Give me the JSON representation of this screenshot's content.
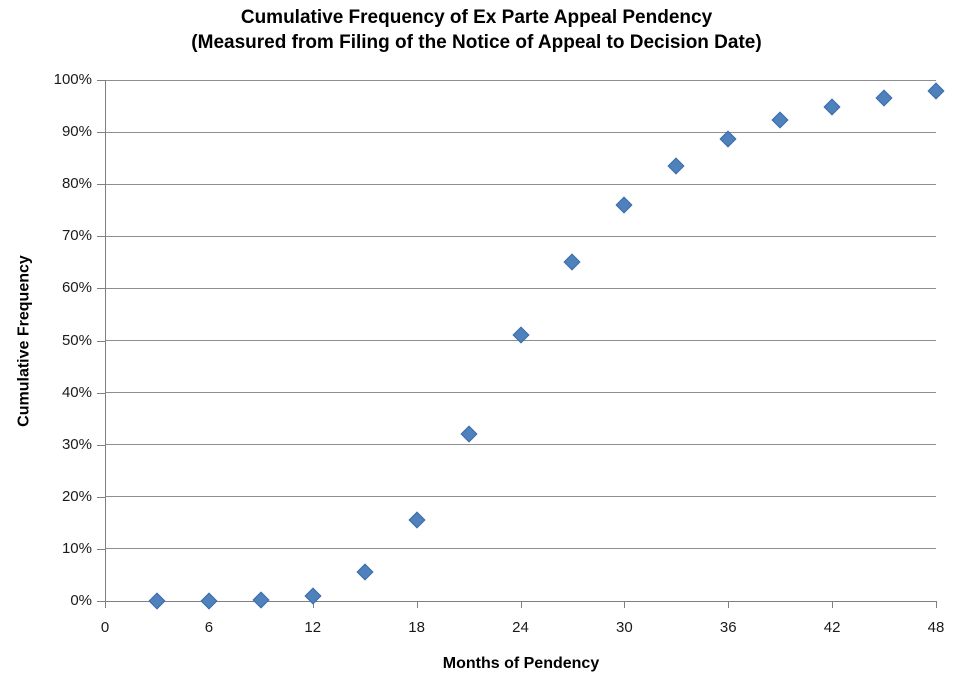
{
  "title": {
    "line1": "Cumulative Frequency of Ex Parte Appeal Pendency",
    "line2": "(Measured from Filing of the Notice of Appeal to Decision Date)"
  },
  "chart_data": {
    "type": "scatter",
    "title": "Cumulative Frequency of Ex Parte Appeal Pendency (Measured from Filing of the Notice of Appeal to Decision Date)",
    "xlabel": "Months of Pendency",
    "ylabel": "Cumulative Frequency",
    "xlim": [
      0,
      48
    ],
    "ylim": [
      0,
      100
    ],
    "x_ticks": [
      0,
      6,
      12,
      18,
      24,
      30,
      36,
      42,
      48
    ],
    "y_ticks": [
      "0%",
      "10%",
      "20%",
      "30%",
      "40%",
      "50%",
      "60%",
      "70%",
      "80%",
      "90%",
      "100%"
    ],
    "grid": "horizontal-only",
    "legend": "none",
    "marker_shape": "diamond",
    "points": [
      {
        "month": 3,
        "cumulative_pct": 0.0
      },
      {
        "month": 6,
        "cumulative_pct": 0.0
      },
      {
        "month": 9,
        "cumulative_pct": 0.1
      },
      {
        "month": 12,
        "cumulative_pct": 1.0
      },
      {
        "month": 15,
        "cumulative_pct": 5.5
      },
      {
        "month": 18,
        "cumulative_pct": 15.5
      },
      {
        "month": 21,
        "cumulative_pct": 32.0
      },
      {
        "month": 24,
        "cumulative_pct": 51.0
      },
      {
        "month": 27,
        "cumulative_pct": 65.0
      },
      {
        "month": 30,
        "cumulative_pct": 76.0
      },
      {
        "month": 33,
        "cumulative_pct": 83.5
      },
      {
        "month": 36,
        "cumulative_pct": 88.7
      },
      {
        "month": 39,
        "cumulative_pct": 92.4
      },
      {
        "month": 42,
        "cumulative_pct": 94.8
      },
      {
        "month": 45,
        "cumulative_pct": 96.5
      },
      {
        "month": 48,
        "cumulative_pct": 97.8
      }
    ]
  },
  "colors": {
    "marker_fill": "#4F81BD",
    "marker_border": "#3A6BA8",
    "gridline": "#8E8E8E",
    "axis": "#7F7F7F",
    "text": "#000000",
    "background": "#FFFFFF"
  }
}
